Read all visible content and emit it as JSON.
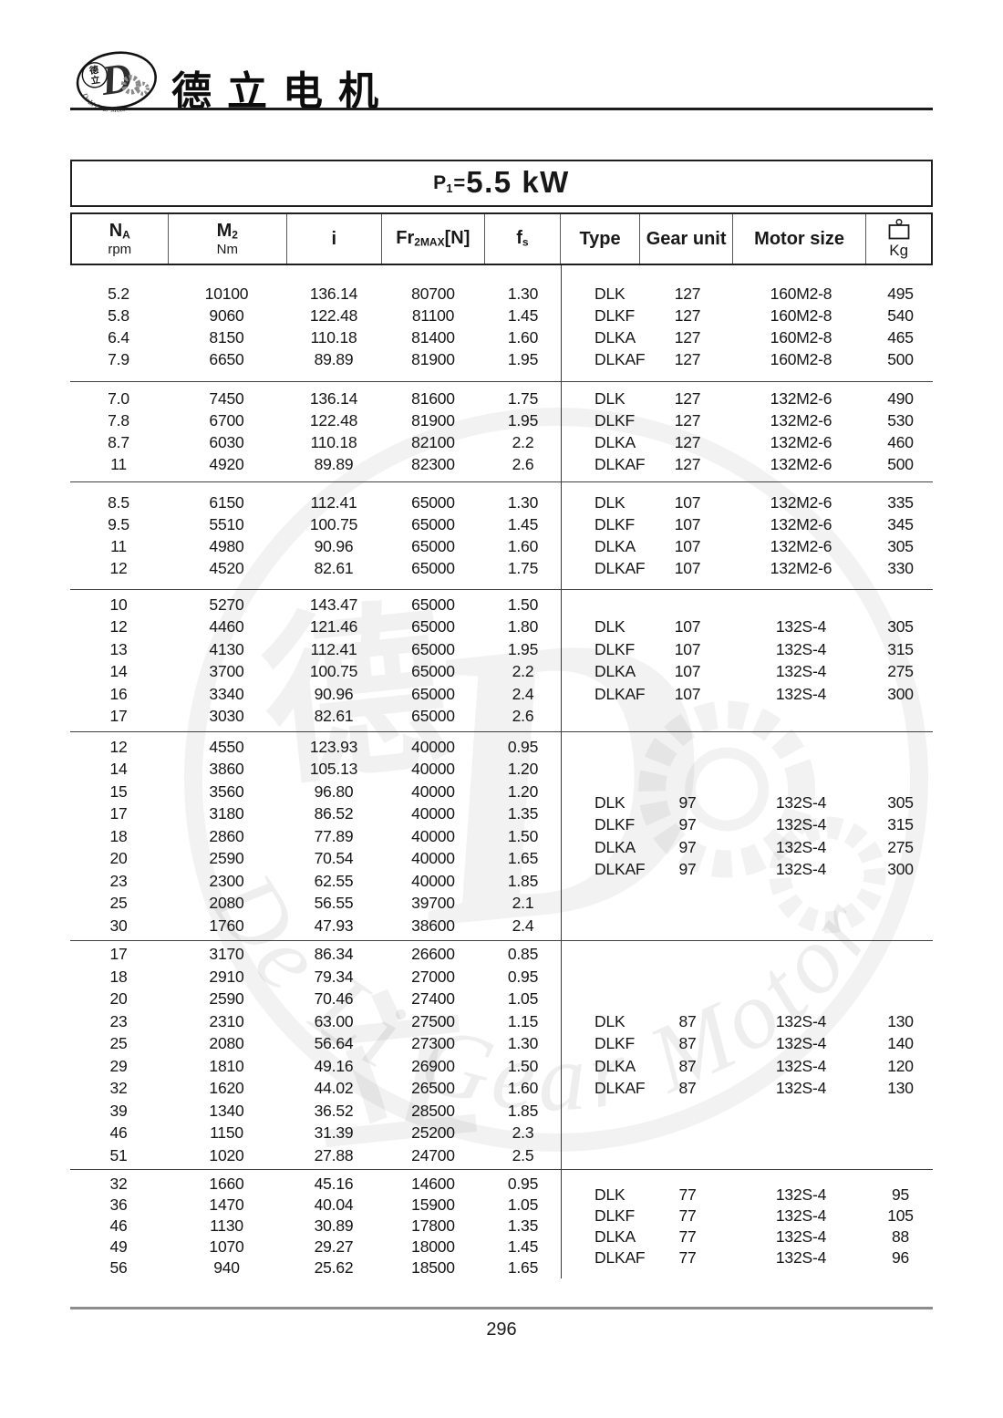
{
  "brand": {
    "name_cn": "德立电机",
    "logo_letter": "D",
    "logo_cn_top": "德",
    "logo_cn_bottom": "立",
    "arc_text": "De Li Gear Motor"
  },
  "title": {
    "prefix": "P",
    "prefix_sub": "1",
    "equals": "=",
    "value": "5.5 kW"
  },
  "columns": {
    "na_main": "N",
    "na_sub": "A",
    "na_unit": "rpm",
    "m2_main": "M",
    "m2_sub": "2",
    "m2_unit": "Nm",
    "ratio": "i",
    "fr_main": "Fr",
    "fr_sub": "2MAX",
    "fr_bracket": "[N]",
    "fs_main": "f",
    "fs_sub": "s",
    "type": "Type",
    "gear_unit": "Gear unit",
    "motor_size": "Motor size",
    "weight_unit": "Kg"
  },
  "groups": [
    {
      "left": [
        [
          "5.2",
          "10100",
          "136.14",
          "80700",
          "1.30"
        ],
        [
          "5.8",
          "9060",
          "122.48",
          "81100",
          "1.45"
        ],
        [
          "6.4",
          "8150",
          "110.18",
          "81400",
          "1.60"
        ],
        [
          "7.9",
          "6650",
          "89.89",
          "81900",
          "1.95"
        ]
      ],
      "right": [
        [
          "DLK",
          "127",
          "160M2-8",
          "495"
        ],
        [
          "DLKF",
          "127",
          "160M2-8",
          "540"
        ],
        [
          "DLKA",
          "127",
          "160M2-8",
          "465"
        ],
        [
          "DLKAF",
          "127",
          "160M2-8",
          "500"
        ]
      ]
    },
    {
      "left": [
        [
          "7.0",
          "7450",
          "136.14",
          "81600",
          "1.75"
        ],
        [
          "7.8",
          "6700",
          "122.48",
          "81900",
          "1.95"
        ],
        [
          "8.7",
          "6030",
          "110.18",
          "82100",
          "2.2"
        ],
        [
          "11",
          "4920",
          "89.89",
          "82300",
          "2.6"
        ]
      ],
      "right": [
        [
          "DLK",
          "127",
          "132M2-6",
          "490"
        ],
        [
          "DLKF",
          "127",
          "132M2-6",
          "530"
        ],
        [
          "DLKA",
          "127",
          "132M2-6",
          "460"
        ],
        [
          "DLKAF",
          "127",
          "132M2-6",
          "500"
        ]
      ]
    },
    {
      "left": [
        [
          "8.5",
          "6150",
          "112.41",
          "65000",
          "1.30"
        ],
        [
          "9.5",
          "5510",
          "100.75",
          "65000",
          "1.45"
        ],
        [
          "11",
          "4980",
          "90.96",
          "65000",
          "1.60"
        ],
        [
          "12",
          "4520",
          "82.61",
          "65000",
          "1.75"
        ]
      ],
      "right": [
        [
          "DLK",
          "107",
          "132M2-6",
          "335"
        ],
        [
          "DLKF",
          "107",
          "132M2-6",
          "345"
        ],
        [
          "DLKA",
          "107",
          "132M2-6",
          "305"
        ],
        [
          "DLKAF",
          "107",
          "132M2-6",
          "330"
        ]
      ]
    },
    {
      "left": [
        [
          "10",
          "5270",
          "143.47",
          "65000",
          "1.50"
        ],
        [
          "12",
          "4460",
          "121.46",
          "65000",
          "1.80"
        ],
        [
          "13",
          "4130",
          "112.41",
          "65000",
          "1.95"
        ],
        [
          "14",
          "3700",
          "100.75",
          "65000",
          "2.2"
        ],
        [
          "16",
          "3340",
          "90.96",
          "65000",
          "2.4"
        ],
        [
          "17",
          "3030",
          "82.61",
          "65000",
          "2.6"
        ]
      ],
      "right": [
        [
          "DLK",
          "107",
          "132S-4",
          "305"
        ],
        [
          "DLKF",
          "107",
          "132S-4",
          "315"
        ],
        [
          "DLKA",
          "107",
          "132S-4",
          "275"
        ],
        [
          "DLKAF",
          "107",
          "132S-4",
          "300"
        ]
      ]
    },
    {
      "left": [
        [
          "12",
          "4550",
          "123.93",
          "40000",
          "0.95"
        ],
        [
          "14",
          "3860",
          "105.13",
          "40000",
          "1.20"
        ],
        [
          "15",
          "3560",
          "96.80",
          "40000",
          "1.20"
        ],
        [
          "17",
          "3180",
          "86.52",
          "40000",
          "1.35"
        ],
        [
          "18",
          "2860",
          "77.89",
          "40000",
          "1.50"
        ],
        [
          "20",
          "2590",
          "70.54",
          "40000",
          "1.65"
        ],
        [
          "23",
          "2300",
          "62.55",
          "40000",
          "1.85"
        ],
        [
          "25",
          "2080",
          "56.55",
          "39700",
          "2.1"
        ],
        [
          "30",
          "1760",
          "47.93",
          "38600",
          "2.4"
        ]
      ],
      "right": [
        [
          "DLK",
          "97",
          "132S-4",
          "305"
        ],
        [
          "DLKF",
          "97",
          "132S-4",
          "315"
        ],
        [
          "DLKA",
          "97",
          "132S-4",
          "275"
        ],
        [
          "DLKAF",
          "97",
          "132S-4",
          "300"
        ]
      ]
    },
    {
      "left": [
        [
          "17",
          "3170",
          "86.34",
          "26600",
          "0.85"
        ],
        [
          "18",
          "2910",
          "79.34",
          "27000",
          "0.95"
        ],
        [
          "20",
          "2590",
          "70.46",
          "27400",
          "1.05"
        ],
        [
          "23",
          "2310",
          "63.00",
          "27500",
          "1.15"
        ],
        [
          "25",
          "2080",
          "56.64",
          "27300",
          "1.30"
        ],
        [
          "29",
          "1810",
          "49.16",
          "26900",
          "1.50"
        ],
        [
          "32",
          "1620",
          "44.02",
          "26500",
          "1.60"
        ],
        [
          "39",
          "1340",
          "36.52",
          "28500",
          "1.85"
        ],
        [
          "46",
          "1150",
          "31.39",
          "25200",
          "2.3"
        ],
        [
          "51",
          "1020",
          "27.88",
          "24700",
          "2.5"
        ]
      ],
      "right": [
        [
          "DLK",
          "87",
          "132S-4",
          "130"
        ],
        [
          "DLKF",
          "87",
          "132S-4",
          "140"
        ],
        [
          "DLKA",
          "87",
          "132S-4",
          "120"
        ],
        [
          "DLKAF",
          "87",
          "132S-4",
          "130"
        ]
      ]
    },
    {
      "left": [
        [
          "32",
          "1660",
          "45.16",
          "14600",
          "0.95"
        ],
        [
          "36",
          "1470",
          "40.04",
          "15900",
          "1.05"
        ],
        [
          "46",
          "1130",
          "30.89",
          "17800",
          "1.35"
        ],
        [
          "49",
          "1070",
          "29.27",
          "18000",
          "1.45"
        ],
        [
          "56",
          "940",
          "25.62",
          "18500",
          "1.65"
        ]
      ],
      "right": [
        [
          "DLK",
          "77",
          "132S-4",
          "95"
        ],
        [
          "DLKF",
          "77",
          "132S-4",
          "105"
        ],
        [
          "DLKA",
          "77",
          "132S-4",
          "88"
        ],
        [
          "DLKAF",
          "77",
          "132S-4",
          "96"
        ]
      ]
    }
  ],
  "page_number": "296"
}
